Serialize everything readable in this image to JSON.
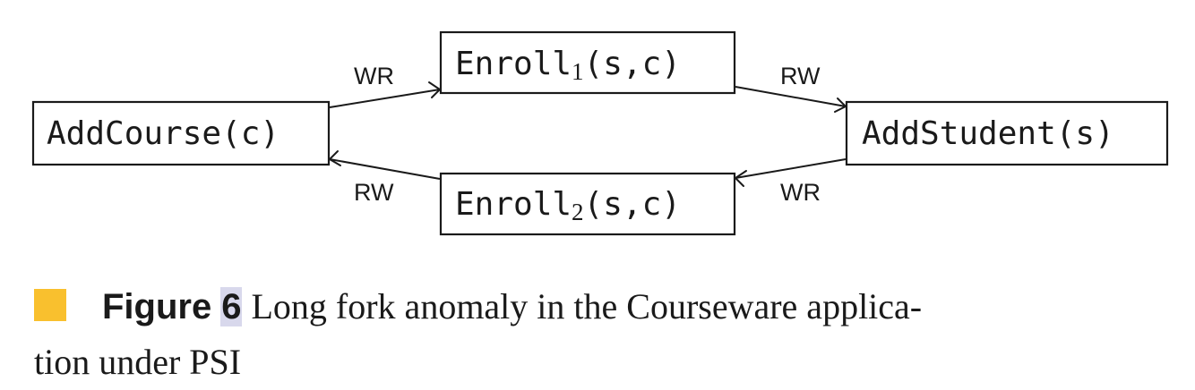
{
  "diagram": {
    "nodes": [
      {
        "id": "addcourse",
        "main": "AddCourse(c)",
        "sub": "",
        "tail": ""
      },
      {
        "id": "enroll1",
        "main": "Enroll",
        "sub": "1",
        "tail": "(s,c)"
      },
      {
        "id": "addstudent",
        "main": "AddStudent(s)",
        "sub": "",
        "tail": ""
      },
      {
        "id": "enroll2",
        "main": "Enroll",
        "sub": "2",
        "tail": "(s,c)"
      }
    ],
    "edges": [
      {
        "from": "addcourse",
        "to": "enroll1",
        "label": "WR"
      },
      {
        "from": "enroll1",
        "to": "addstudent",
        "label": "RW"
      },
      {
        "from": "addstudent",
        "to": "enroll2",
        "label": "WR"
      },
      {
        "from": "enroll2",
        "to": "addcourse",
        "label": "RW"
      }
    ]
  },
  "caption": {
    "marker_color": "#f9c02e",
    "label": "Figure",
    "number": "6",
    "text": "Long fork anomaly in the Courseware applica-\ntion under PSI"
  }
}
